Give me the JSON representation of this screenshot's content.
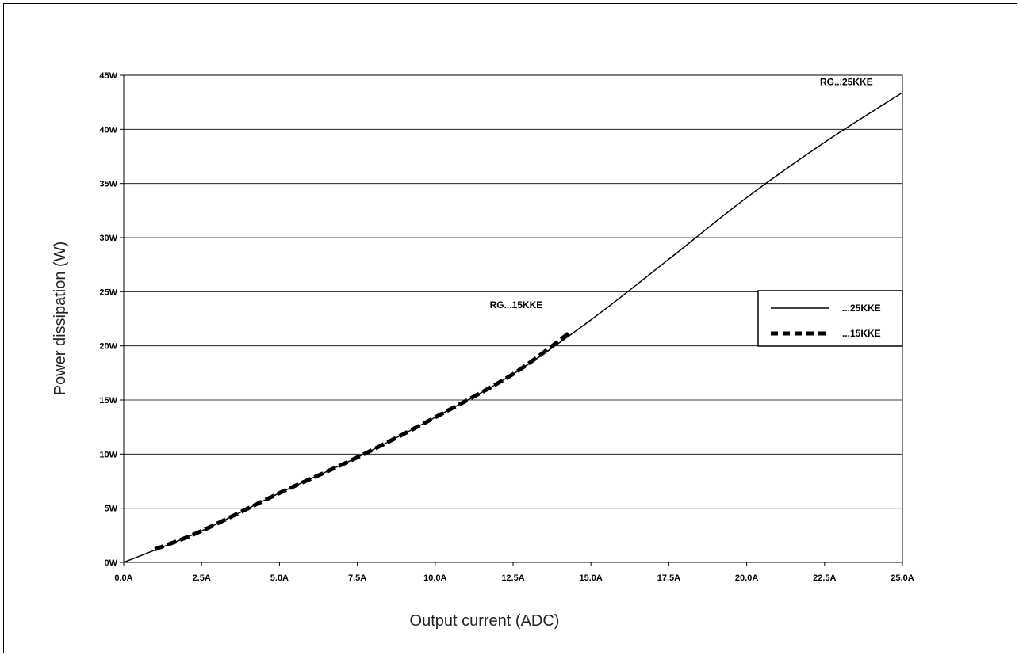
{
  "chart_data": {
    "type": "line",
    "title": "",
    "xlabel": "Output current (ADC)",
    "ylabel": "Power dissipation (W)",
    "xlim": [
      0,
      25
    ],
    "ylim": [
      0,
      45
    ],
    "x_ticks": [
      "0.0A",
      "2.5A",
      "5.0A",
      "7.5A",
      "10.0A",
      "12.5A",
      "15.0A",
      "17.5A",
      "20.0A",
      "22.5A",
      "25.0A"
    ],
    "y_ticks": [
      "0W",
      "5W",
      "10W",
      "15W",
      "20W",
      "25W",
      "30W",
      "35W",
      "40W",
      "45W"
    ],
    "grid": "horizontal",
    "legend_position": "right",
    "series": [
      {
        "name": "...25KKE",
        "style": "solid",
        "x": [
          0,
          2.5,
          5,
          7.5,
          10,
          12.5,
          15,
          17.5,
          20,
          22.5,
          25
        ],
        "y": [
          0,
          2.9,
          6.4,
          9.7,
          13.4,
          17.4,
          22.4,
          28,
          33.7,
          38.8,
          43.4
        ]
      },
      {
        "name": "...15KKE",
        "style": "dashed",
        "x": [
          1,
          2.5,
          5,
          7.5,
          10,
          12.5,
          14.3
        ],
        "y": [
          1.2,
          2.9,
          6.4,
          9.7,
          13.4,
          17.4,
          21.2
        ]
      }
    ],
    "annotations": [
      {
        "text": "RG...25KKE",
        "x": 23.2,
        "y": 44.1
      },
      {
        "text": "RG...15KKE",
        "x": 12.6,
        "y": 23.5
      }
    ]
  },
  "colors": {
    "line": "#000000",
    "grid": "#000000",
    "background": "#ffffff"
  }
}
